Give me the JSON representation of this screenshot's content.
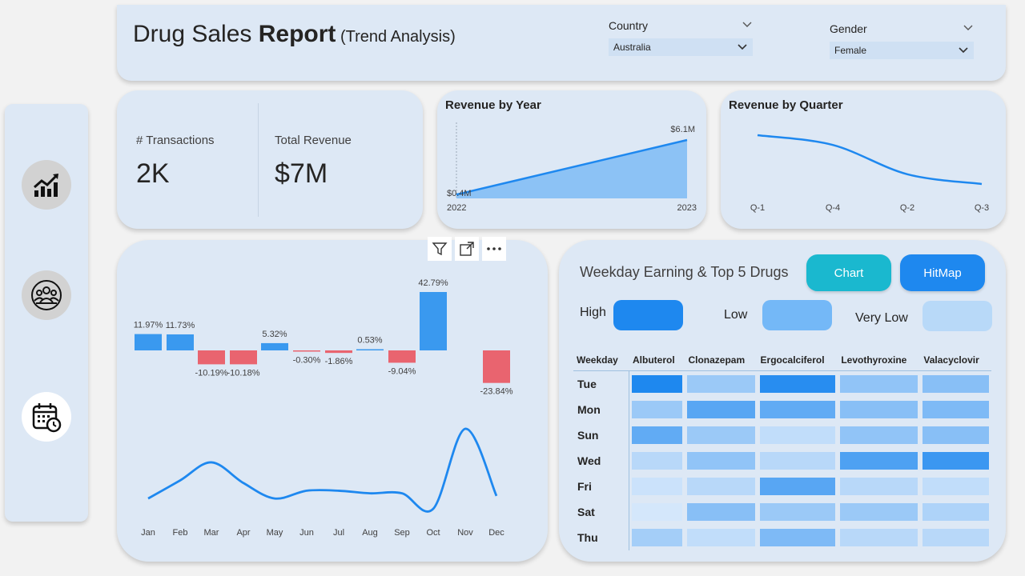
{
  "header": {
    "title_regular": "Drug Sales ",
    "title_bold": "Report",
    "title_sub": " (Trend Analysis)"
  },
  "slicers": {
    "country": {
      "label": "Country",
      "value": "Australia"
    },
    "gender": {
      "label": "Gender",
      "value": "Female"
    }
  },
  "sidebar": [
    {
      "icon": "trend-chart-icon",
      "active": false
    },
    {
      "icon": "people-group-icon",
      "active": false
    },
    {
      "icon": "calendar-clock-icon",
      "active": true
    }
  ],
  "kpis": {
    "transactions": {
      "label": "# Transactions",
      "value": "2K"
    },
    "revenue": {
      "label": "Total Revenue",
      "value": "$7M"
    }
  },
  "revenue_by_year": {
    "title": "Revenue by Year",
    "start_label": "$0.4M",
    "end_label": "$6.1M"
  },
  "revenue_by_quarter": {
    "title": "Revenue by Quarter"
  },
  "heatmap": {
    "title": "Weekday Earning & Top 5 Drugs",
    "chart_button": "Chart",
    "hitmap_button": "HitMap",
    "legend": [
      {
        "label": "High",
        "color": "#1e88ef"
      },
      {
        "label": "Low",
        "color": "#74b8f7"
      },
      {
        "label": "Very Low",
        "color": "#b8d9f8"
      }
    ],
    "header_col": "Weekday",
    "columns": [
      "Albuterol",
      "Clonazepam",
      "Ergocalciferol",
      "Levothyroxine",
      "Valacyclovir"
    ],
    "rows": [
      {
        "day": "Tue",
        "levels": [
          1.0,
          0.35,
          0.95,
          0.4,
          0.45
        ]
      },
      {
        "day": "Mon",
        "levels": [
          0.35,
          0.7,
          0.65,
          0.45,
          0.5
        ]
      },
      {
        "day": "Sun",
        "levels": [
          0.65,
          0.35,
          0.15,
          0.4,
          0.45
        ]
      },
      {
        "day": "Wed",
        "levels": [
          0.2,
          0.4,
          0.2,
          0.75,
          0.85
        ]
      },
      {
        "day": "Fri",
        "levels": [
          0.1,
          0.2,
          0.7,
          0.2,
          0.15
        ]
      },
      {
        "day": "Sat",
        "levels": [
          0.05,
          0.45,
          0.35,
          0.35,
          0.25
        ]
      },
      {
        "day": "Thu",
        "levels": [
          0.3,
          0.15,
          0.5,
          0.2,
          0.2
        ]
      }
    ]
  },
  "chart_data": [
    {
      "type": "area",
      "title": "Revenue by Year",
      "categories": [
        "2022",
        "2023"
      ],
      "values": [
        0.4,
        6.1
      ],
      "data_labels": [
        "$0.4M",
        "$6.1M"
      ]
    },
    {
      "type": "line",
      "title": "Revenue by Quarter",
      "categories": [
        "Q-1",
        "Q-4",
        "Q-2",
        "Q-3"
      ],
      "values": [
        1.9,
        1.8,
        1.5,
        1.4
      ]
    },
    {
      "type": "bar",
      "categories": [
        "Jan",
        "Feb",
        "Mar",
        "Apr",
        "May",
        "Jun",
        "Jul",
        "Aug",
        "Sep",
        "Oct",
        "Nov",
        "Dec"
      ],
      "values": [
        11.97,
        11.73,
        -10.19,
        -10.18,
        5.32,
        -0.3,
        -1.86,
        0.53,
        -9.04,
        42.79,
        null,
        -23.84
      ],
      "data_labels": [
        "11.97%",
        "11.73%",
        "-10.19%",
        "-10.18%",
        "5.32%",
        "-0.30%",
        "-1.86%",
        "0.53%",
        "-9.04%",
        "42.79%",
        "",
        "-23.84%"
      ],
      "colors": {
        "positive": "#3a99ef",
        "negative": "#e9646f"
      }
    },
    {
      "type": "line",
      "categories": [
        "Jan",
        "Feb",
        "Mar",
        "Apr",
        "May",
        "Jun",
        "Jul",
        "Aug",
        "Sep",
        "Oct",
        "Nov",
        "Dec"
      ],
      "values": [
        0.54,
        0.61,
        0.68,
        0.6,
        0.54,
        0.57,
        0.57,
        0.56,
        0.56,
        0.5,
        0.81,
        0.55
      ]
    }
  ]
}
